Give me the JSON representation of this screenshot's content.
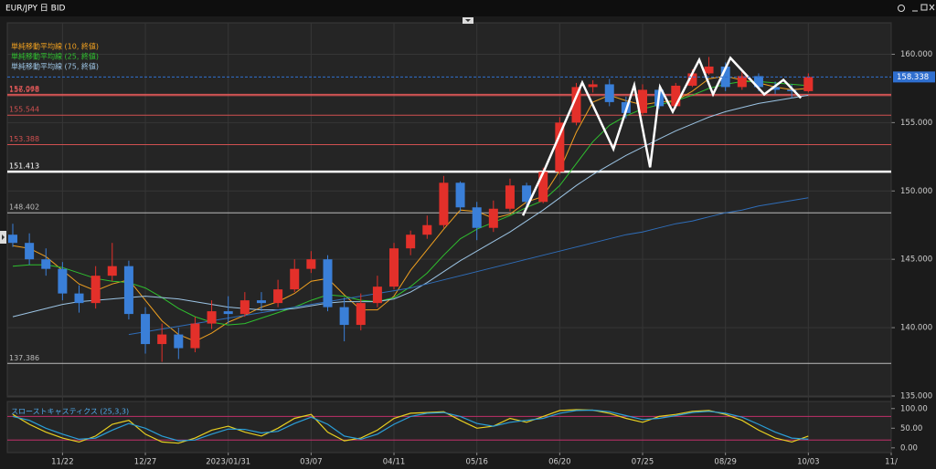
{
  "chart_data": [
    {
      "type": "candlestick",
      "title": "EUR/JPY 日 BID",
      "open": [
        146.8,
        146.2,
        145.0,
        144.3,
        142.5,
        141.8,
        143.8,
        144.5,
        141.0,
        138.8,
        139.5,
        138.5,
        140.3,
        141.2,
        141.0,
        142.0,
        141.8,
        142.8,
        144.3,
        145.0,
        141.5,
        140.2,
        141.8,
        143.0,
        145.8,
        146.8,
        147.5,
        150.6,
        148.8,
        147.3,
        148.7,
        150.4,
        149.2,
        151.4,
        155.0,
        157.6,
        157.8,
        156.5,
        155.7,
        157.4,
        156.2,
        157.7,
        158.6,
        159.1,
        157.6,
        158.4,
        157.6,
        157.4,
        157.3
      ],
      "high": [
        147.6,
        146.9,
        145.8,
        144.8,
        143.1,
        144.5,
        146.2,
        144.9,
        141.5,
        140.3,
        140.0,
        140.8,
        142.0,
        142.3,
        142.6,
        142.6,
        143.5,
        145.0,
        145.6,
        145.3,
        142.2,
        142.5,
        143.8,
        146.2,
        147.1,
        148.2,
        151.1,
        150.7,
        149.2,
        149.3,
        150.9,
        150.6,
        151.7,
        155.4,
        157.9,
        158.1,
        158.2,
        156.9,
        157.8,
        157.6,
        157.9,
        158.9,
        159.8,
        159.4,
        158.8,
        158.6,
        158.0,
        157.8,
        158.6
      ],
      "low": [
        145.9,
        144.6,
        143.8,
        142.0,
        141.1,
        141.4,
        143.4,
        140.6,
        138.1,
        137.5,
        137.7,
        138.2,
        139.9,
        140.3,
        140.8,
        141.2,
        141.5,
        142.6,
        144.0,
        141.2,
        139.0,
        139.8,
        141.5,
        142.8,
        145.3,
        146.5,
        147.3,
        148.5,
        146.4,
        147.0,
        148.5,
        148.9,
        149.1,
        151.2,
        154.8,
        157.2,
        156.2,
        155.3,
        155.5,
        156.0,
        156.0,
        157.6,
        158.5,
        157.3,
        157.4,
        157.3,
        157.1,
        156.8,
        157.2
      ],
      "close": [
        146.2,
        145.0,
        144.3,
        142.5,
        141.8,
        143.8,
        144.5,
        141.0,
        138.8,
        139.5,
        138.5,
        140.3,
        141.2,
        141.0,
        142.0,
        141.8,
        142.8,
        144.3,
        145.0,
        141.5,
        140.2,
        141.8,
        143.0,
        145.8,
        146.8,
        147.5,
        150.6,
        148.8,
        147.3,
        148.7,
        150.4,
        149.2,
        151.4,
        155.0,
        157.6,
        157.8,
        156.5,
        155.7,
        157.4,
        156.2,
        157.7,
        158.6,
        159.1,
        157.6,
        158.4,
        157.6,
        157.4,
        157.3,
        158.338
      ],
      "up_color": "#e3302a",
      "down_color": "#3a7fd8",
      "xlim": [
        -0.33,
        53
      ],
      "xticks": [
        {
          "value": 3,
          "label": "11/22"
        },
        {
          "value": 8,
          "label": "12/27"
        },
        {
          "value": 13,
          "label": "2023/01/31"
        },
        {
          "value": 18,
          "label": "03/07"
        },
        {
          "value": 23,
          "label": "04/11"
        },
        {
          "value": 28,
          "label": "05/16"
        },
        {
          "value": 33,
          "label": "06/20"
        },
        {
          "value": 38,
          "label": "07/25"
        },
        {
          "value": 43,
          "label": "08/29"
        },
        {
          "value": 48,
          "label": "10/03"
        },
        {
          "value": 53,
          "label": "11/"
        }
      ],
      "ylim": [
        135,
        162.3
      ],
      "yticks": [
        {
          "value": 135,
          "label": "135.000"
        },
        {
          "value": 140,
          "label": "140.000"
        },
        {
          "value": 145,
          "label": "145.000"
        },
        {
          "value": 150,
          "label": "150.000"
        },
        {
          "value": 155,
          "label": "155.000"
        },
        {
          "value": 160,
          "label": "160.000"
        }
      ],
      "grid": true,
      "series": [
        {
          "name": "単純移動平均線 (10, 終値)",
          "color": "#f0a020",
          "values": [
            146.0,
            145.8,
            145.2,
            144.2,
            143.2,
            142.7,
            143.2,
            143.5,
            142.0,
            140.5,
            139.5,
            139.0,
            139.6,
            140.4,
            140.9,
            141.5,
            141.9,
            142.5,
            143.4,
            143.6,
            142.4,
            141.3,
            141.3,
            142.3,
            144.2,
            145.7,
            147.2,
            148.6,
            148.5,
            148.0,
            148.3,
            149.2,
            149.6,
            151.5,
            154.3,
            156.5,
            157.0,
            156.6,
            156.3,
            156.5,
            156.6,
            157.3,
            158.2,
            158.4,
            158.1,
            157.9,
            157.6,
            157.4,
            157.5
          ]
        },
        {
          "name": "単純移動平均線 (25, 終値)",
          "color": "#2fc02f",
          "values": [
            144.5,
            144.6,
            144.6,
            144.4,
            144.0,
            143.6,
            143.4,
            143.3,
            142.9,
            142.2,
            141.4,
            140.8,
            140.4,
            140.2,
            140.3,
            140.7,
            141.1,
            141.5,
            142.0,
            142.4,
            142.3,
            142.0,
            141.9,
            142.2,
            143.0,
            144.0,
            145.3,
            146.5,
            147.2,
            147.7,
            148.2,
            148.8,
            149.3,
            150.4,
            152.0,
            153.6,
            154.8,
            155.5,
            156.0,
            156.3,
            156.6,
            157.0,
            157.5,
            157.8,
            158.0,
            158.0,
            157.9,
            157.8,
            157.7
          ]
        },
        {
          "name": "単純移動平均線 (75, 終値)",
          "color": "#9cc4e4",
          "values": [
            140.8,
            141.1,
            141.4,
            141.7,
            141.9,
            142.0,
            142.1,
            142.2,
            142.3,
            142.2,
            142.1,
            141.9,
            141.7,
            141.5,
            141.4,
            141.3,
            141.3,
            141.4,
            141.6,
            141.8,
            141.9,
            141.9,
            141.9,
            142.1,
            142.6,
            143.3,
            144.1,
            144.9,
            145.6,
            146.3,
            147.0,
            147.8,
            148.6,
            149.5,
            150.4,
            151.2,
            151.9,
            152.6,
            153.2,
            153.8,
            154.4,
            154.9,
            155.4,
            155.8,
            156.1,
            156.4,
            156.6,
            156.8,
            157.0
          ]
        },
        {
          "color": "#2f6db8",
          "values": [
            null,
            null,
            null,
            null,
            null,
            null,
            null,
            139.5,
            139.7,
            139.9,
            140.1,
            140.3,
            140.5,
            140.7,
            140.9,
            141.1,
            141.3,
            141.5,
            141.7,
            141.9,
            142.1,
            142.3,
            142.5,
            142.7,
            142.9,
            143.2,
            143.5,
            143.8,
            144.1,
            144.4,
            144.7,
            145.0,
            145.3,
            145.6,
            145.9,
            146.2,
            146.5,
            146.8,
            147.0,
            147.3,
            147.6,
            147.8,
            148.1,
            148.4,
            148.6,
            148.9,
            149.1,
            149.3,
            149.5
          ]
        }
      ],
      "levels": [
        {
          "value": 157.068,
          "color": "#e85a5a"
        },
        {
          "value": 156.978,
          "color": "#e85a5a"
        },
        {
          "value": 155.544,
          "color": "#d05050"
        },
        {
          "value": 153.388,
          "color": "#d05050"
        },
        {
          "value": 151.413,
          "color": "#ffffff"
        },
        {
          "value": 148.402,
          "color": "#bbbbbb"
        },
        {
          "value": 137.386,
          "color": "#bbbbbb"
        }
      ],
      "last_price": 158.338,
      "last_price_color": "#2f6fd0",
      "trend_line": {
        "color": "#ffffff",
        "x": [
          30.78,
          32.1,
          34.36,
          36.24,
          37.5,
          38.45,
          39.05,
          39.82,
          41.42,
          42.25,
          43.3,
          45.34,
          46.5,
          47.55
        ],
        "values": [
          148.2,
          151.6,
          157.93,
          153.07,
          157.73,
          151.73,
          157.6,
          155.8,
          159.6,
          157.07,
          159.73,
          157.07,
          158.13,
          156.8
        ]
      }
    },
    {
      "type": "line",
      "title": "スローストキャスティクス (25,3,3)",
      "ylim": [
        -12,
        118
      ],
      "yticks": [
        {
          "value": 0,
          "label": "0.00"
        },
        {
          "value": 50,
          "label": "50.00"
        },
        {
          "value": 100,
          "label": "100.00"
        }
      ],
      "levels": [
        20,
        80
      ],
      "level_color": "#c0306a",
      "series": [
        {
          "color": "#e8d020",
          "values": [
            85,
            60,
            40,
            25,
            15,
            30,
            60,
            70,
            35,
            15,
            12,
            25,
            45,
            55,
            40,
            30,
            50,
            75,
            85,
            40,
            18,
            25,
            45,
            75,
            88,
            90,
            92,
            70,
            50,
            55,
            75,
            65,
            80,
            95,
            97,
            96,
            88,
            75,
            65,
            80,
            85,
            93,
            95,
            85,
            70,
            45,
            25,
            15,
            30
          ]
        },
        {
          "color": "#2a9fd8",
          "values": [
            80,
            70,
            50,
            35,
            22,
            25,
            45,
            62,
            50,
            30,
            18,
            20,
            35,
            48,
            47,
            38,
            42,
            62,
            78,
            60,
            30,
            22,
            35,
            60,
            80,
            88,
            90,
            80,
            62,
            55,
            65,
            70,
            75,
            88,
            95,
            96,
            92,
            82,
            72,
            75,
            82,
            90,
            93,
            88,
            78,
            60,
            40,
            25,
            22
          ]
        }
      ]
    }
  ]
}
